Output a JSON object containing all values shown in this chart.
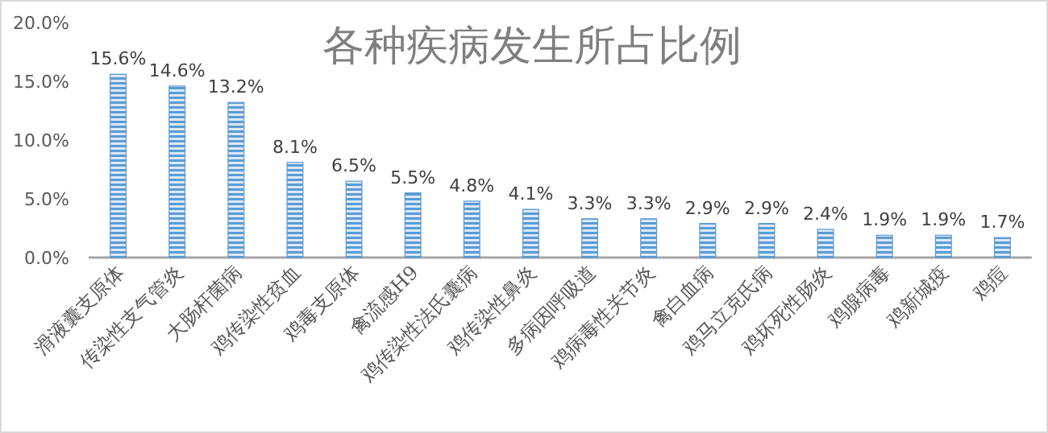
{
  "chart_data": {
    "type": "bar",
    "title": "各种疾病发生所占比例",
    "categories": [
      "滑液囊支原体",
      "传染性支气管炎",
      "大肠杆菌病",
      "鸡传染性贫血",
      "鸡毒支原体",
      "禽流感H9",
      "鸡传染性法氏囊病",
      "鸡传染性鼻炎",
      "多病因呼吸道",
      "鸡病毒性关节炎",
      "禽白血病",
      "鸡马立克氏病",
      "鸡坏死性肠炎",
      "鸡腺病毒",
      "鸡新城疫",
      "鸡痘"
    ],
    "values": [
      15.6,
      14.6,
      13.2,
      8.1,
      6.5,
      5.5,
      4.8,
      4.1,
      3.3,
      3.3,
      2.9,
      2.9,
      2.4,
      1.9,
      1.9,
      1.7
    ],
    "value_labels": [
      "15.6%",
      "14.6%",
      "13.2%",
      "8.1%",
      "6.5%",
      "5.5%",
      "4.8%",
      "4.1%",
      "3.3%",
      "3.3%",
      "2.9%",
      "2.9%",
      "2.4%",
      "1.9%",
      "1.9%",
      "1.7%"
    ],
    "color": "#5b9bd5",
    "ylim": [
      0,
      20
    ],
    "yticks": [
      {
        "value": 0,
        "label": "0.0%"
      },
      {
        "value": 5,
        "label": "5.0%"
      },
      {
        "value": 10,
        "label": "10.0%"
      },
      {
        "value": 15,
        "label": "15.0%"
      },
      {
        "value": 20,
        "label": "20.0%"
      }
    ],
    "grid": false
  }
}
